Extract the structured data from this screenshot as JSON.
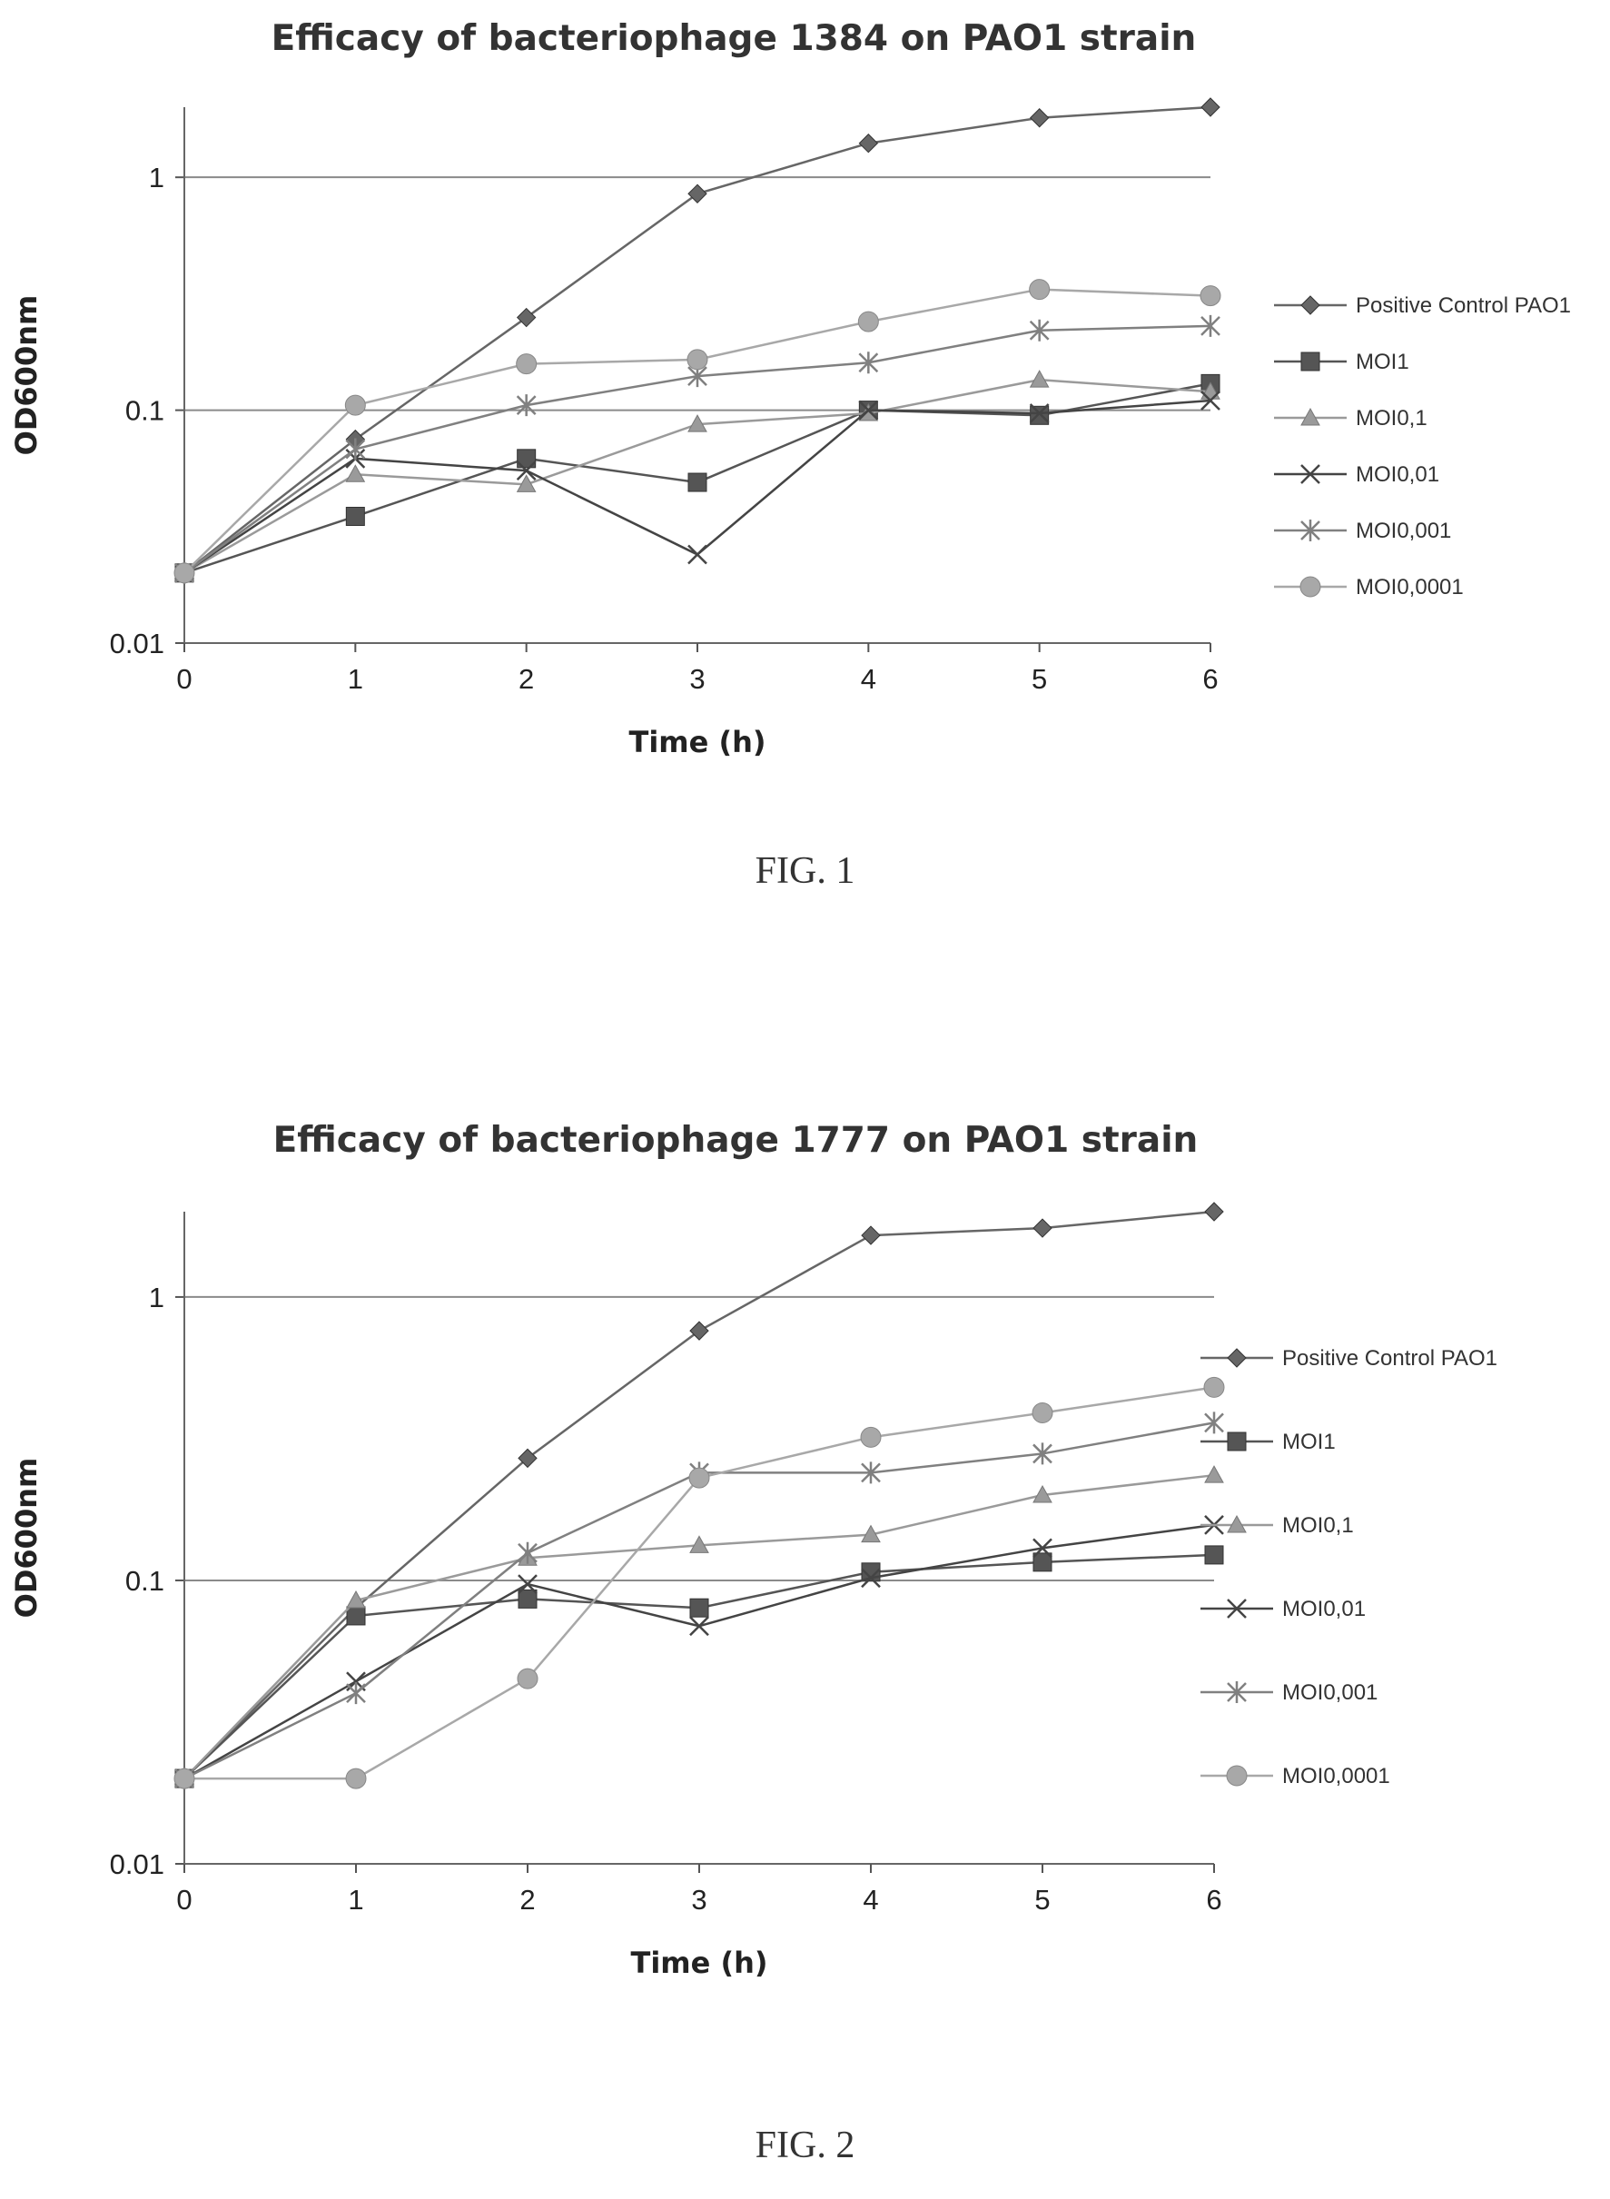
{
  "figures": [
    {
      "label": "FIG. 1"
    },
    {
      "label": "FIG. 2"
    }
  ],
  "chart_data": [
    {
      "type": "line",
      "title": "Efficacy of bacteriophage 1384 on PAO1 strain",
      "xlabel": "Time (h)",
      "ylabel": "OD600nm",
      "yscale": "log",
      "ylim": [
        0.01,
        2
      ],
      "xlim": [
        0,
        6
      ],
      "x": [
        0,
        1,
        2,
        3,
        4,
        5,
        6
      ],
      "yticks": [
        "0.01",
        "0.1",
        "1"
      ],
      "xticks": [
        "0",
        "1",
        "2",
        "3",
        "4",
        "5",
        "6"
      ],
      "legend_position": "right",
      "grid": "horizontal",
      "series": [
        {
          "name": "Positive Control PAO1",
          "marker": "diamond",
          "color": "#666666",
          "values": [
            0.02,
            0.075,
            0.25,
            0.85,
            1.4,
            1.8,
            2.0
          ]
        },
        {
          "name": "MOI1",
          "marker": "square",
          "color": "#555555",
          "values": [
            0.02,
            0.035,
            0.062,
            0.049,
            0.1,
            0.095,
            0.13
          ]
        },
        {
          "name": "MOI0,1",
          "marker": "triangle",
          "color": "#9a9a9a",
          "values": [
            0.02,
            0.053,
            0.048,
            0.087,
            0.097,
            0.135,
            0.12
          ]
        },
        {
          "name": "MOI0,01",
          "marker": "x",
          "color": "#444444",
          "values": [
            0.02,
            0.062,
            0.055,
            0.024,
            0.1,
            0.097,
            0.11
          ]
        },
        {
          "name": "MOI0,001",
          "marker": "star",
          "color": "#808080",
          "values": [
            0.02,
            0.068,
            0.105,
            0.14,
            0.16,
            0.22,
            0.23
          ]
        },
        {
          "name": "MOI0,0001",
          "marker": "circle",
          "color": "#a8a8a8",
          "values": [
            0.02,
            0.105,
            0.158,
            0.165,
            0.24,
            0.33,
            0.31
          ]
        }
      ]
    },
    {
      "type": "line",
      "title": "Efficacy of bacteriophage 1777 on PAO1 strain",
      "xlabel": "Time (h)",
      "ylabel": "OD600nm",
      "yscale": "log",
      "ylim": [
        0.01,
        2
      ],
      "xlim": [
        0,
        6
      ],
      "x": [
        0,
        1,
        2,
        3,
        4,
        5,
        6
      ],
      "yticks": [
        "0.01",
        "0.1",
        "1"
      ],
      "xticks": [
        "0",
        "1",
        "2",
        "3",
        "4",
        "5",
        "6"
      ],
      "legend_position": "right",
      "grid": "horizontal",
      "series": [
        {
          "name": "Positive Control PAO1",
          "marker": "diamond",
          "color": "#666666",
          "values": [
            0.02,
            0.08,
            0.27,
            0.76,
            1.65,
            1.75,
            2.0
          ]
        },
        {
          "name": "MOI1",
          "marker": "square",
          "color": "#555555",
          "values": [
            0.02,
            0.075,
            0.086,
            0.08,
            0.107,
            0.116,
            0.123
          ]
        },
        {
          "name": "MOI0,1",
          "marker": "triangle",
          "color": "#9a9a9a",
          "values": [
            0.02,
            0.085,
            0.12,
            0.133,
            0.145,
            0.2,
            0.235
          ]
        },
        {
          "name": "MOI0,01",
          "marker": "x",
          "color": "#444444",
          "values": [
            0.02,
            0.044,
            0.097,
            0.069,
            0.102,
            0.13,
            0.157
          ]
        },
        {
          "name": "MOI0,001",
          "marker": "star",
          "color": "#808080",
          "values": [
            0.02,
            0.04,
            0.125,
            0.24,
            0.24,
            0.28,
            0.36
          ]
        },
        {
          "name": "MOI0,0001",
          "marker": "circle",
          "color": "#a8a8a8",
          "values": [
            0.02,
            0.02,
            0.045,
            0.23,
            0.32,
            0.39,
            0.48
          ]
        }
      ]
    }
  ]
}
